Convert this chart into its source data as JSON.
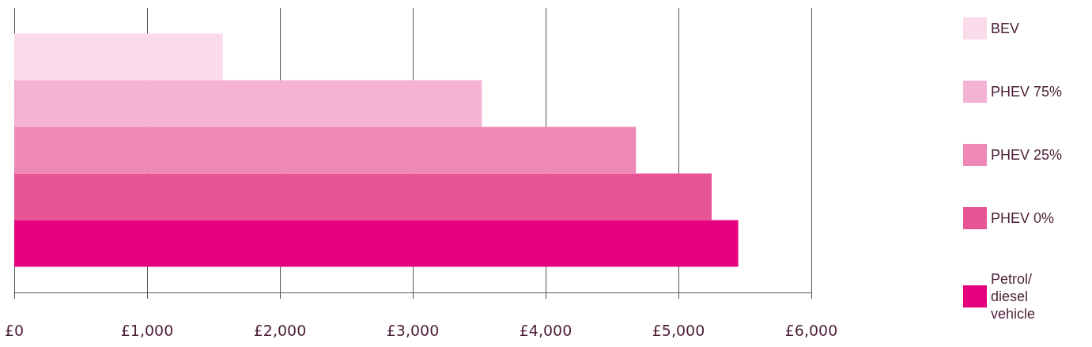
{
  "chart_data": {
    "type": "bar",
    "orientation": "horizontal",
    "categories": [
      null
    ],
    "series": [
      {
        "name": "BEV",
        "color": "#fadbea",
        "values": [
          1570
        ]
      },
      {
        "name": "PHEV 75%",
        "color": "#f4b3d3",
        "values": [
          3520
        ]
      },
      {
        "name": "PHEV 25%",
        "color": "#ee88b4",
        "values": [
          4680
        ]
      },
      {
        "name": "PHEV 0%",
        "color": "#e85597",
        "values": [
          5250
        ]
      },
      {
        "name": "Petrol/ diesel vehicle",
        "color": "#e5007e",
        "values": [
          5450
        ]
      }
    ],
    "xlim": [
      0,
      6000
    ],
    "xticks": [
      {
        "value": 0,
        "label": "£0"
      },
      {
        "value": 1000,
        "label": "£1,000"
      },
      {
        "value": 2000,
        "label": "£2,000"
      },
      {
        "value": 3000,
        "label": "£3,000"
      },
      {
        "value": 4000,
        "label": "£4,000"
      },
      {
        "value": 5000,
        "label": "£5,000"
      },
      {
        "value": 6000,
        "label": "£6,000"
      }
    ],
    "grid": "x",
    "legend": "right"
  }
}
